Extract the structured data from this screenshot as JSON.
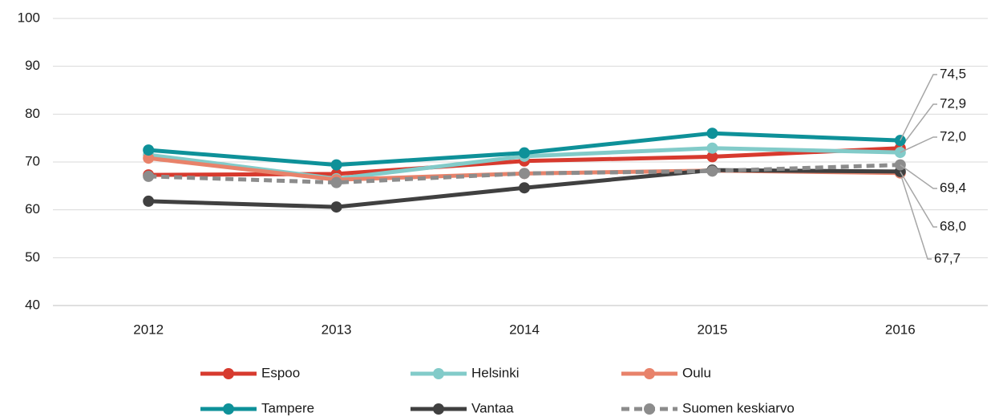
{
  "chart_data": {
    "type": "line",
    "categories": [
      "2012",
      "2013",
      "2014",
      "2015",
      "2016"
    ],
    "ylim": [
      40,
      100
    ],
    "yticks": [
      40,
      50,
      60,
      70,
      80,
      90,
      100
    ],
    "grid": true,
    "legend": "bottom",
    "series": [
      {
        "name": "Espoo",
        "color": "#d73a2e",
        "values": [
          67.3,
          67.5,
          70.2,
          71.1,
          72.9
        ],
        "value_labels": [
          null,
          null,
          null,
          null,
          "72,9"
        ]
      },
      {
        "name": "Helsinki",
        "color": "#82cbc9",
        "values": [
          71.5,
          66.5,
          71.2,
          72.9,
          72.0
        ],
        "value_labels": [
          null,
          null,
          null,
          null,
          "72,0"
        ]
      },
      {
        "name": "Oulu",
        "color": "#e8826a",
        "values": [
          70.8,
          66.3,
          67.6,
          68.2,
          67.7
        ],
        "value_labels": [
          null,
          null,
          null,
          null,
          "67,7"
        ]
      },
      {
        "name": "Tampere",
        "color": "#0e9199",
        "values": [
          72.5,
          69.4,
          71.9,
          76.0,
          74.5
        ],
        "value_labels": [
          null,
          null,
          null,
          null,
          "74,5"
        ]
      },
      {
        "name": "Vantaa",
        "color": "#404040",
        "values": [
          61.8,
          60.6,
          64.6,
          68.3,
          68.0
        ],
        "value_labels": [
          null,
          null,
          null,
          null,
          "68,0"
        ]
      },
      {
        "name": "Suomen keskiarvo",
        "color": "#8c8c8c",
        "line_style": "dashed",
        "values": [
          67.0,
          65.7,
          67.6,
          68.1,
          69.4
        ],
        "value_labels": [
          null,
          null,
          null,
          null,
          "69,4"
        ]
      }
    ]
  }
}
